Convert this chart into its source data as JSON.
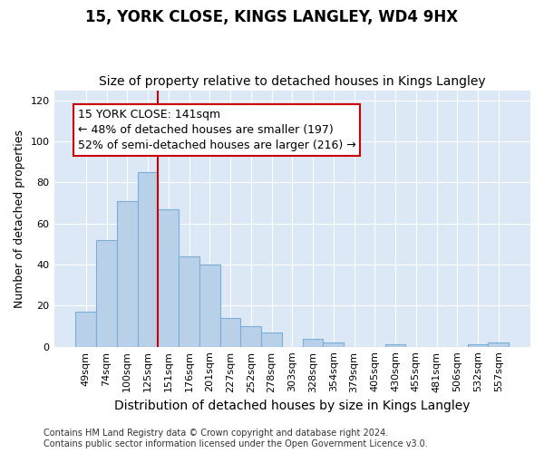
{
  "title": "15, YORK CLOSE, KINGS LANGLEY, WD4 9HX",
  "subtitle": "Size of property relative to detached houses in Kings Langley",
  "xlabel": "Distribution of detached houses by size in Kings Langley",
  "ylabel": "Number of detached properties",
  "categories": [
    "49sqm",
    "74sqm",
    "100sqm",
    "125sqm",
    "151sqm",
    "176sqm",
    "201sqm",
    "227sqm",
    "252sqm",
    "278sqm",
    "303sqm",
    "328sqm",
    "354sqm",
    "379sqm",
    "405sqm",
    "430sqm",
    "455sqm",
    "481sqm",
    "506sqm",
    "532sqm",
    "557sqm"
  ],
  "values": [
    17,
    52,
    71,
    85,
    67,
    44,
    40,
    14,
    10,
    7,
    0,
    4,
    2,
    0,
    0,
    1,
    0,
    0,
    0,
    1,
    2
  ],
  "bar_color": "#b8d0e8",
  "bar_edge_color": "#7aaed6",
  "vline_x": 3.5,
  "vline_color": "#cc0000",
  "annotation_text": "15 YORK CLOSE: 141sqm\n← 48% of detached houses are smaller (197)\n52% of semi-detached houses are larger (216) →",
  "annotation_box_facecolor": "#ffffff",
  "annotation_box_edgecolor": "#cc0000",
  "ylim": [
    0,
    125
  ],
  "yticks": [
    0,
    20,
    40,
    60,
    80,
    100,
    120
  ],
  "footnote": "Contains HM Land Registry data © Crown copyright and database right 2024.\nContains public sector information licensed under the Open Government Licence v3.0.",
  "plot_background_color": "#dce8f5",
  "title_fontsize": 12,
  "subtitle_fontsize": 10,
  "xlabel_fontsize": 10,
  "ylabel_fontsize": 9,
  "annotation_fontsize": 9,
  "footnote_fontsize": 7,
  "tick_fontsize": 8
}
